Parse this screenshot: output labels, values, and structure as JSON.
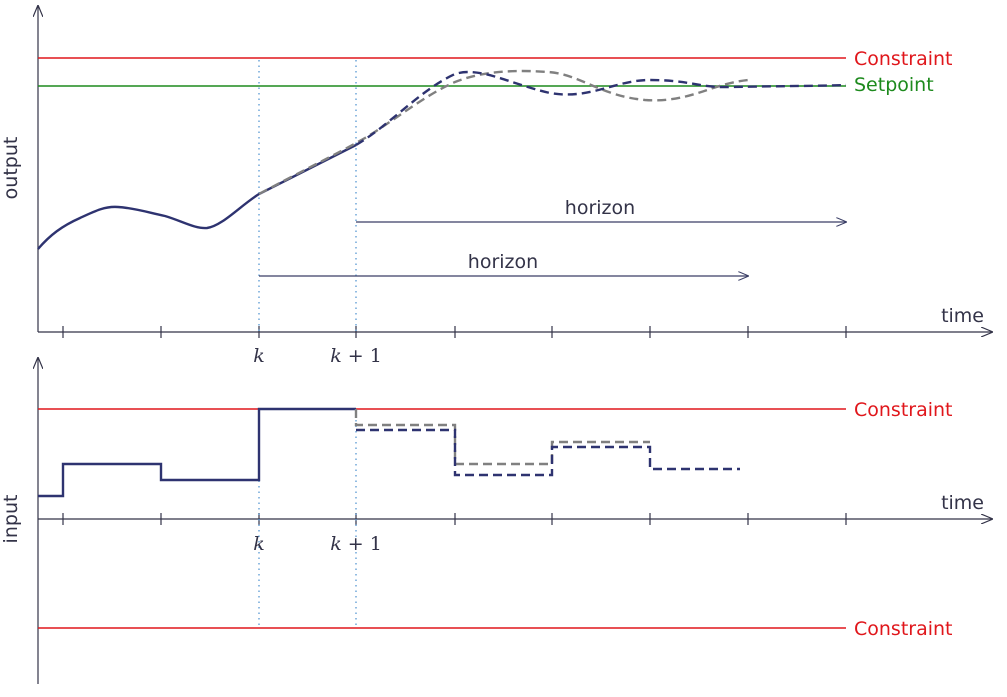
{
  "colors": {
    "axis": "#333348",
    "measured": "#2e3370",
    "predicted_navy": "#2e3370",
    "predicted_gray": "#808080",
    "constraint": "#e0161b",
    "setpoint": "#1d8a1d",
    "marker": "#4a8fcf",
    "horizon_arrow": "#3a3e66"
  },
  "top_plot": {
    "y_axis_label": "output",
    "x_axis_label": "time",
    "constraint_label": "Constraint",
    "setpoint_label": "Setpoint",
    "horizon_label_1": "horizon",
    "horizon_label_2": "horizon",
    "tick_k": "k",
    "tick_k1_var": "k",
    "tick_k1_rest": " + 1"
  },
  "bottom_plot": {
    "y_axis_label": "input",
    "x_axis_label": "time",
    "upper_constraint_label": "Constraint",
    "lower_constraint_label": "Constraint",
    "tick_k": "k",
    "tick_k1_var": "k",
    "tick_k1_rest": " + 1"
  }
}
